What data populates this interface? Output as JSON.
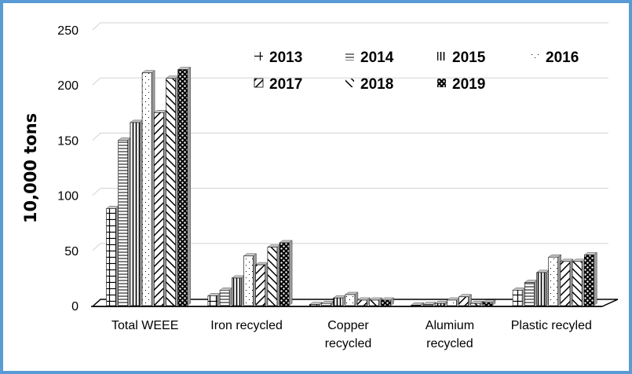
{
  "chart_data": {
    "type": "bar",
    "style": "3d-clustered-column-patterned",
    "title": "",
    "xlabel": "",
    "ylabel": "10,000 tons",
    "ylim": [
      0,
      250
    ],
    "yticks": [
      0,
      50,
      100,
      150,
      200,
      250
    ],
    "grid": true,
    "legend_position": "top-right",
    "categories": [
      "Total WEEE",
      "Iron recycled",
      "Copper recycled",
      "Alumium recycled",
      "Plastic recyled"
    ],
    "category_lines": [
      [
        "Total WEEE"
      ],
      [
        "Iron recycled"
      ],
      [
        "Copper",
        "recycled"
      ],
      [
        "Alumium",
        "recycled"
      ],
      [
        "Plastic recyled"
      ]
    ],
    "series": [
      {
        "name": "2013",
        "pattern": "grid",
        "values": [
          88,
          9,
          1,
          0.5,
          14
        ]
      },
      {
        "name": "2014",
        "pattern": "horizontal",
        "values": [
          150,
          14,
          2,
          1,
          21
        ]
      },
      {
        "name": "2015",
        "pattern": "vertical",
        "values": [
          166,
          25,
          7,
          2,
          30
        ]
      },
      {
        "name": "2016",
        "pattern": "dots",
        "values": [
          211,
          45,
          10,
          5,
          44
        ]
      },
      {
        "name": "2017",
        "pattern": "diag-down",
        "values": [
          175,
          37,
          5,
          8,
          40
        ]
      },
      {
        "name": "2018",
        "pattern": "diag-up",
        "values": [
          206,
          53,
          5,
          2,
          40
        ]
      },
      {
        "name": "2019",
        "pattern": "checker",
        "values": [
          214,
          57,
          5,
          3,
          46
        ]
      }
    ]
  },
  "colors": {
    "border": "#5b9bd5",
    "grid": "#d9d9d9",
    "ink": "#000000"
  }
}
